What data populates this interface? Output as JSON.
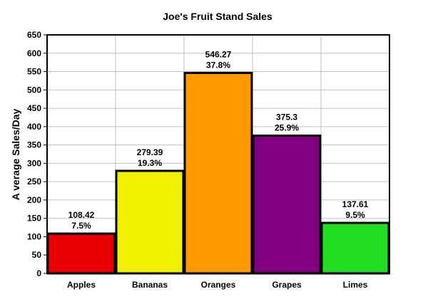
{
  "chart_data": {
    "type": "bar",
    "title": "Joe's Fruit Stand Sales",
    "xlabel": "",
    "ylabel": "A verage Sales/Day",
    "ylim": [
      0,
      650
    ],
    "ytick_step": 50,
    "grid": true,
    "legend": "none",
    "categories": [
      "Apples",
      "Bananas",
      "Oranges",
      "Grapes",
      "Limes"
    ],
    "values": [
      108.42,
      279.39,
      546.27,
      375.3,
      137.61
    ],
    "value_labels": [
      "108.42",
      "279.39",
      "546.27",
      "375.3",
      "137.61"
    ],
    "percent_labels": [
      "7.5%",
      "19.3%",
      "37.8%",
      "25.9%",
      "9.5%"
    ],
    "colors": [
      "#e60000",
      "#f0f000",
      "#ff9900",
      "#800080",
      "#22dd22"
    ]
  }
}
